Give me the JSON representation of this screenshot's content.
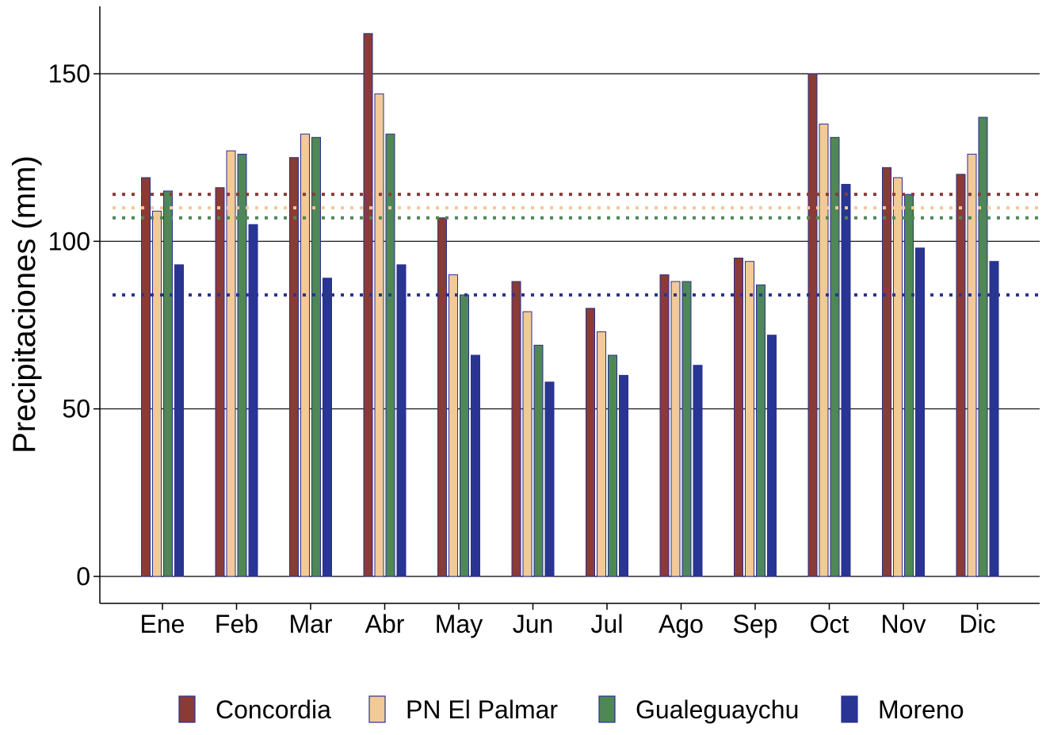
{
  "chart_data": {
    "type": "bar",
    "title": "",
    "xlabel": "",
    "ylabel": "Precipitaciones (mm)",
    "ylim": [
      -8,
      170
    ],
    "yticks": [
      0,
      50,
      100,
      150
    ],
    "ytick_labels": [
      "0",
      "50",
      "100",
      "150"
    ],
    "grid": "horizontal major lines",
    "legend_position": "bottom",
    "categories": [
      "Ene",
      "Feb",
      "Mar",
      "Abr",
      "May",
      "Jun",
      "Jul",
      "Ago",
      "Sep",
      "Oct",
      "Nov",
      "Dic"
    ],
    "series": [
      {
        "name": "Concordia",
        "color": "#8a3b36",
        "values": [
          119,
          116,
          125,
          162,
          107,
          88,
          80,
          90,
          95,
          150,
          122,
          120
        ],
        "mean_line": 114
      },
      {
        "name": "PN El Palmar",
        "color": "#f2c999",
        "values": [
          109,
          127,
          132,
          144,
          90,
          79,
          73,
          88,
          94,
          135,
          119,
          126
        ],
        "mean_line": 110
      },
      {
        "name": "Gualeguaychu",
        "color": "#4f8757",
        "values": [
          115,
          126,
          131,
          132,
          84,
          69,
          66,
          88,
          87,
          131,
          114,
          137
        ],
        "mean_line": 107
      },
      {
        "name": "Moreno",
        "color": "#283593",
        "values": [
          93,
          105,
          89,
          93,
          66,
          58,
          60,
          63,
          72,
          117,
          98,
          94
        ],
        "mean_line": 84
      }
    ],
    "bar_outline_color": "#2b2f8f"
  }
}
